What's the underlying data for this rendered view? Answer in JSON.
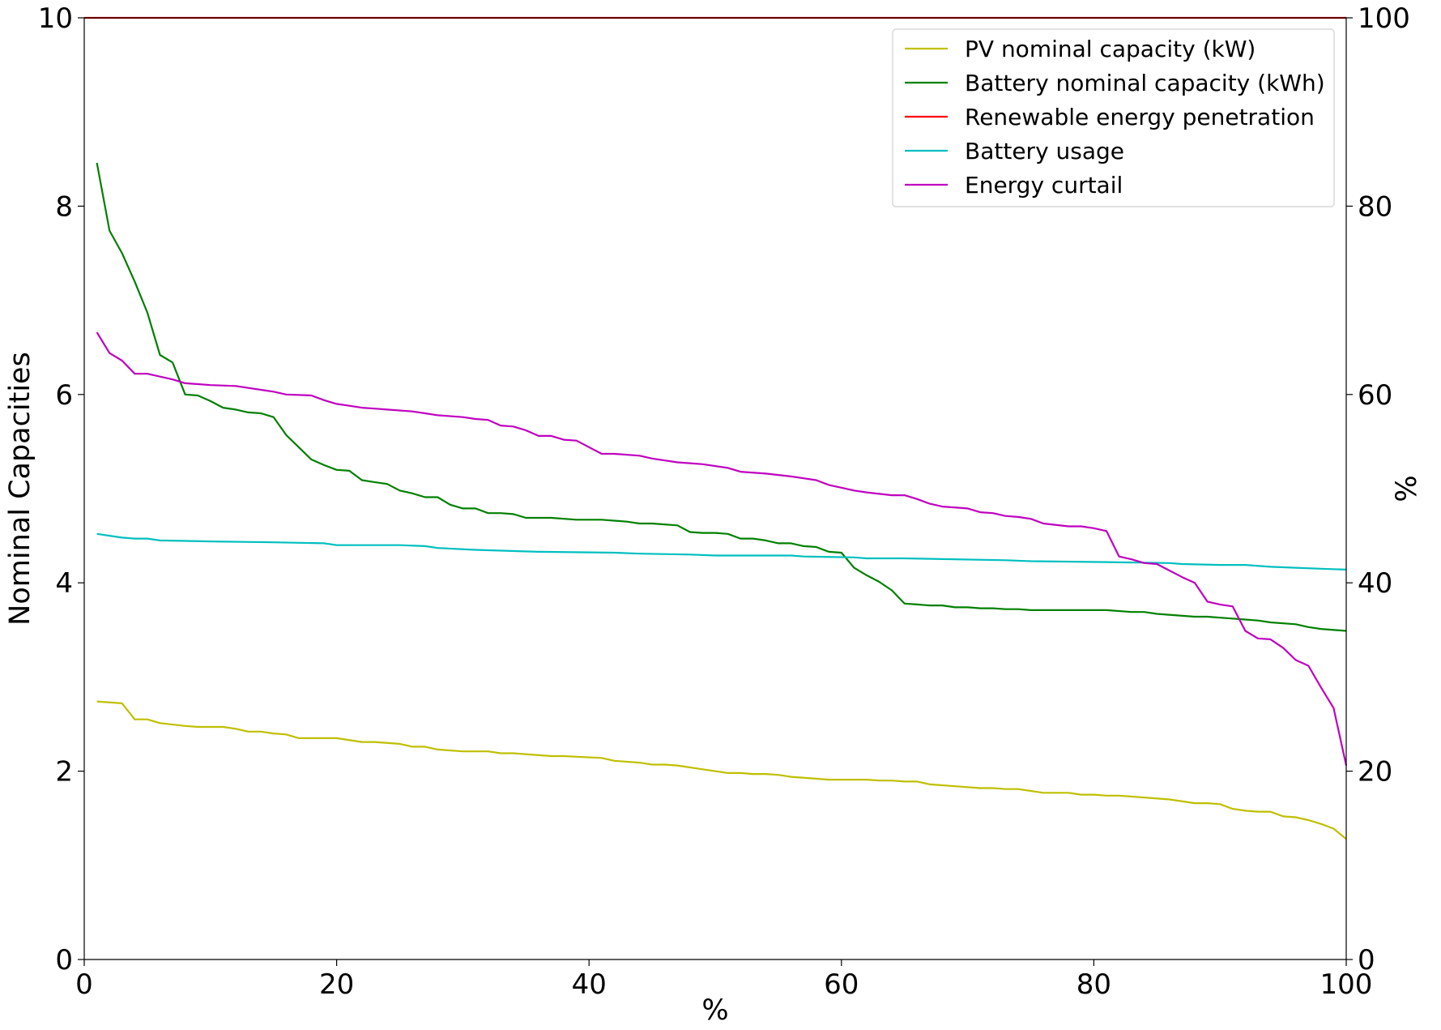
{
  "chart_data": {
    "type": "line",
    "title": "",
    "xlabel": "%",
    "ylabel_left": "Nominal Capacities",
    "ylabel_right": "%",
    "xlim": [
      0,
      100
    ],
    "ylim_left": [
      0,
      10
    ],
    "ylim_right": [
      0,
      100
    ],
    "x_ticks": [
      0,
      20,
      40,
      60,
      80,
      100
    ],
    "x_tick_labels": [
      "0",
      "20",
      "40",
      "60",
      "80",
      "100"
    ],
    "y_left_ticks": [
      0,
      2,
      4,
      6,
      8,
      10
    ],
    "y_left_tick_labels": [
      "0",
      "2",
      "4",
      "6",
      "8",
      "10"
    ],
    "y_right_ticks": [
      0,
      20,
      40,
      60,
      80,
      100
    ],
    "y_right_tick_labels": [
      "0",
      "20",
      "40",
      "60",
      "80",
      "100"
    ],
    "grid": false,
    "legend_position": "top-right",
    "series": [
      {
        "name": "PV nominal capacity (kW)",
        "axis": "left",
        "color": "#bfbf00",
        "points": [
          [
            1,
            2.74
          ],
          [
            3,
            2.72
          ],
          [
            4,
            2.55
          ],
          [
            5,
            2.55
          ],
          [
            6,
            2.51
          ],
          [
            8,
            2.48
          ],
          [
            9,
            2.47
          ],
          [
            11,
            2.47
          ],
          [
            12,
            2.45
          ],
          [
            13,
            2.42
          ],
          [
            14,
            2.42
          ],
          [
            15,
            2.4
          ],
          [
            16,
            2.39
          ],
          [
            17,
            2.35
          ],
          [
            20,
            2.35
          ],
          [
            22,
            2.31
          ],
          [
            23,
            2.31
          ],
          [
            25,
            2.29
          ],
          [
            26,
            2.26
          ],
          [
            27,
            2.26
          ],
          [
            28,
            2.23
          ],
          [
            30,
            2.21
          ],
          [
            32,
            2.21
          ],
          [
            33,
            2.19
          ],
          [
            34,
            2.19
          ],
          [
            37,
            2.16
          ],
          [
            38,
            2.16
          ],
          [
            41,
            2.14
          ],
          [
            42,
            2.11
          ],
          [
            44,
            2.09
          ],
          [
            45,
            2.07
          ],
          [
            46,
            2.07
          ],
          [
            47,
            2.06
          ],
          [
            49,
            2.02
          ],
          [
            51,
            1.98
          ],
          [
            52,
            1.98
          ],
          [
            53,
            1.97
          ],
          [
            54,
            1.97
          ],
          [
            55,
            1.96
          ],
          [
            56,
            1.94
          ],
          [
            58,
            1.92
          ],
          [
            59,
            1.91
          ],
          [
            62,
            1.91
          ],
          [
            63,
            1.9
          ],
          [
            64,
            1.9
          ],
          [
            65,
            1.89
          ],
          [
            66,
            1.89
          ],
          [
            67,
            1.86
          ],
          [
            69,
            1.84
          ],
          [
            71,
            1.82
          ],
          [
            72,
            1.82
          ],
          [
            73,
            1.81
          ],
          [
            74,
            1.81
          ],
          [
            76,
            1.77
          ],
          [
            78,
            1.77
          ],
          [
            79,
            1.75
          ],
          [
            80,
            1.75
          ],
          [
            81,
            1.74
          ],
          [
            82,
            1.74
          ],
          [
            84,
            1.72
          ],
          [
            86,
            1.7
          ],
          [
            88,
            1.66
          ],
          [
            89,
            1.66
          ],
          [
            90,
            1.65
          ],
          [
            91,
            1.6
          ],
          [
            92,
            1.58
          ],
          [
            93,
            1.57
          ],
          [
            94,
            1.57
          ],
          [
            95,
            1.52
          ],
          [
            96,
            1.51
          ],
          [
            97,
            1.48
          ],
          [
            98,
            1.44
          ],
          [
            99,
            1.39
          ],
          [
            100,
            1.28
          ]
        ]
      },
      {
        "name": "Battery nominal capacity (kWh)",
        "axis": "left",
        "color": "#008000",
        "points": [
          [
            1,
            8.46
          ],
          [
            2,
            7.74
          ],
          [
            3,
            7.5
          ],
          [
            4,
            7.2
          ],
          [
            5,
            6.87
          ],
          [
            6,
            6.42
          ],
          [
            7,
            6.34
          ],
          [
            8,
            6.0
          ],
          [
            9,
            5.99
          ],
          [
            10,
            5.93
          ],
          [
            11,
            5.86
          ],
          [
            12,
            5.84
          ],
          [
            13,
            5.81
          ],
          [
            14,
            5.8
          ],
          [
            15,
            5.76
          ],
          [
            16,
            5.57
          ],
          [
            17,
            5.44
          ],
          [
            18,
            5.31
          ],
          [
            19,
            5.25
          ],
          [
            20,
            5.2
          ],
          [
            21,
            5.19
          ],
          [
            22,
            5.09
          ],
          [
            23,
            5.07
          ],
          [
            24,
            5.05
          ],
          [
            25,
            4.98
          ],
          [
            26,
            4.95
          ],
          [
            27,
            4.91
          ],
          [
            28,
            4.91
          ],
          [
            29,
            4.83
          ],
          [
            30,
            4.79
          ],
          [
            31,
            4.79
          ],
          [
            32,
            4.74
          ],
          [
            33,
            4.74
          ],
          [
            34,
            4.73
          ],
          [
            35,
            4.69
          ],
          [
            37,
            4.69
          ],
          [
            39,
            4.67
          ],
          [
            41,
            4.67
          ],
          [
            43,
            4.65
          ],
          [
            44,
            4.63
          ],
          [
            45,
            4.63
          ],
          [
            47,
            4.61
          ],
          [
            48,
            4.54
          ],
          [
            49,
            4.53
          ],
          [
            50,
            4.53
          ],
          [
            51,
            4.52
          ],
          [
            52,
            4.47
          ],
          [
            53,
            4.47
          ],
          [
            54,
            4.45
          ],
          [
            55,
            4.42
          ],
          [
            56,
            4.42
          ],
          [
            57,
            4.39
          ],
          [
            58,
            4.38
          ],
          [
            59,
            4.33
          ],
          [
            60,
            4.32
          ],
          [
            61,
            4.16
          ],
          [
            62,
            4.08
          ],
          [
            63,
            4.01
          ],
          [
            64,
            3.92
          ],
          [
            65,
            3.78
          ],
          [
            66,
            3.77
          ],
          [
            67,
            3.76
          ],
          [
            68,
            3.76
          ],
          [
            69,
            3.74
          ],
          [
            70,
            3.74
          ],
          [
            71,
            3.73
          ],
          [
            72,
            3.73
          ],
          [
            73,
            3.72
          ],
          [
            74,
            3.72
          ],
          [
            75,
            3.71
          ],
          [
            81,
            3.71
          ],
          [
            83,
            3.69
          ],
          [
            84,
            3.69
          ],
          [
            85,
            3.67
          ],
          [
            88,
            3.64
          ],
          [
            89,
            3.64
          ],
          [
            92,
            3.61
          ],
          [
            93,
            3.6
          ],
          [
            94,
            3.58
          ],
          [
            96,
            3.56
          ],
          [
            97,
            3.53
          ],
          [
            98,
            3.51
          ],
          [
            100,
            3.49
          ]
        ]
      },
      {
        "name": "Renewable energy penetration",
        "axis": "right",
        "color": "#ff0000",
        "points": [
          [
            0,
            100
          ],
          [
            100,
            100
          ]
        ]
      },
      {
        "name": "Battery usage",
        "axis": "right",
        "color": "#00bfbf",
        "points": [
          [
            1,
            45.2
          ],
          [
            2,
            45.0
          ],
          [
            3,
            44.8
          ],
          [
            4,
            44.7
          ],
          [
            5,
            44.7
          ],
          [
            6,
            44.5
          ],
          [
            10,
            44.4
          ],
          [
            15,
            44.3
          ],
          [
            19,
            44.2
          ],
          [
            20,
            44.0
          ],
          [
            25,
            44.0
          ],
          [
            27,
            43.9
          ],
          [
            28,
            43.7
          ],
          [
            31,
            43.5
          ],
          [
            36,
            43.3
          ],
          [
            42,
            43.2
          ],
          [
            44,
            43.1
          ],
          [
            48,
            43.0
          ],
          [
            50,
            42.9
          ],
          [
            56,
            42.9
          ],
          [
            57,
            42.8
          ],
          [
            61,
            42.7
          ],
          [
            62,
            42.6
          ],
          [
            65,
            42.6
          ],
          [
            73,
            42.4
          ],
          [
            75,
            42.3
          ],
          [
            81,
            42.2
          ],
          [
            86,
            42.1
          ],
          [
            87,
            42.0
          ],
          [
            90,
            41.9
          ],
          [
            92,
            41.9
          ],
          [
            94,
            41.7
          ],
          [
            96,
            41.6
          ],
          [
            98,
            41.5
          ],
          [
            100,
            41.4
          ]
        ]
      },
      {
        "name": "Energy curtail",
        "axis": "right",
        "color": "#bf00bf",
        "points": [
          [
            1,
            66.6
          ],
          [
            2,
            64.4
          ],
          [
            3,
            63.6
          ],
          [
            4,
            62.2
          ],
          [
            5,
            62.2
          ],
          [
            6,
            61.9
          ],
          [
            7,
            61.6
          ],
          [
            8,
            61.2
          ],
          [
            9,
            61.1
          ],
          [
            10,
            61.0
          ],
          [
            12,
            60.9
          ],
          [
            13,
            60.7
          ],
          [
            14,
            60.5
          ],
          [
            15,
            60.3
          ],
          [
            16,
            60.0
          ],
          [
            18,
            59.9
          ],
          [
            19,
            59.4
          ],
          [
            20,
            59.0
          ],
          [
            21,
            58.8
          ],
          [
            22,
            58.6
          ],
          [
            23,
            58.5
          ],
          [
            24,
            58.4
          ],
          [
            26,
            58.2
          ],
          [
            27,
            58.0
          ],
          [
            28,
            57.8
          ],
          [
            30,
            57.6
          ],
          [
            31,
            57.4
          ],
          [
            32,
            57.3
          ],
          [
            33,
            56.7
          ],
          [
            34,
            56.6
          ],
          [
            35,
            56.2
          ],
          [
            36,
            55.6
          ],
          [
            37,
            55.6
          ],
          [
            38,
            55.2
          ],
          [
            39,
            55.1
          ],
          [
            41,
            53.7
          ],
          [
            42,
            53.7
          ],
          [
            44,
            53.5
          ],
          [
            45,
            53.2
          ],
          [
            47,
            52.8
          ],
          [
            48,
            52.7
          ],
          [
            49,
            52.6
          ],
          [
            51,
            52.2
          ],
          [
            52,
            51.8
          ],
          [
            54,
            51.6
          ],
          [
            56,
            51.3
          ],
          [
            57,
            51.1
          ],
          [
            58,
            50.9
          ],
          [
            59,
            50.4
          ],
          [
            60,
            50.1
          ],
          [
            61,
            49.8
          ],
          [
            62,
            49.6
          ],
          [
            64,
            49.3
          ],
          [
            65,
            49.3
          ],
          [
            66,
            48.9
          ],
          [
            67,
            48.4
          ],
          [
            68,
            48.1
          ],
          [
            70,
            47.9
          ],
          [
            71,
            47.5
          ],
          [
            72,
            47.4
          ],
          [
            73,
            47.1
          ],
          [
            74,
            47.0
          ],
          [
            75,
            46.8
          ],
          [
            76,
            46.3
          ],
          [
            78,
            46.0
          ],
          [
            79,
            46.0
          ],
          [
            80,
            45.8
          ],
          [
            81,
            45.5
          ],
          [
            82,
            42.8
          ],
          [
            83,
            42.5
          ],
          [
            84,
            42.1
          ],
          [
            85,
            42.0
          ],
          [
            86,
            41.3
          ],
          [
            87,
            40.6
          ],
          [
            88,
            40.0
          ],
          [
            89,
            38.0
          ],
          [
            90,
            37.7
          ],
          [
            91,
            37.5
          ],
          [
            92,
            34.9
          ],
          [
            93,
            34.1
          ],
          [
            94,
            34.0
          ],
          [
            95,
            33.1
          ],
          [
            96,
            31.8
          ],
          [
            97,
            31.2
          ],
          [
            98,
            28.9
          ],
          [
            99,
            26.7
          ],
          [
            100,
            20.6
          ]
        ]
      }
    ]
  }
}
